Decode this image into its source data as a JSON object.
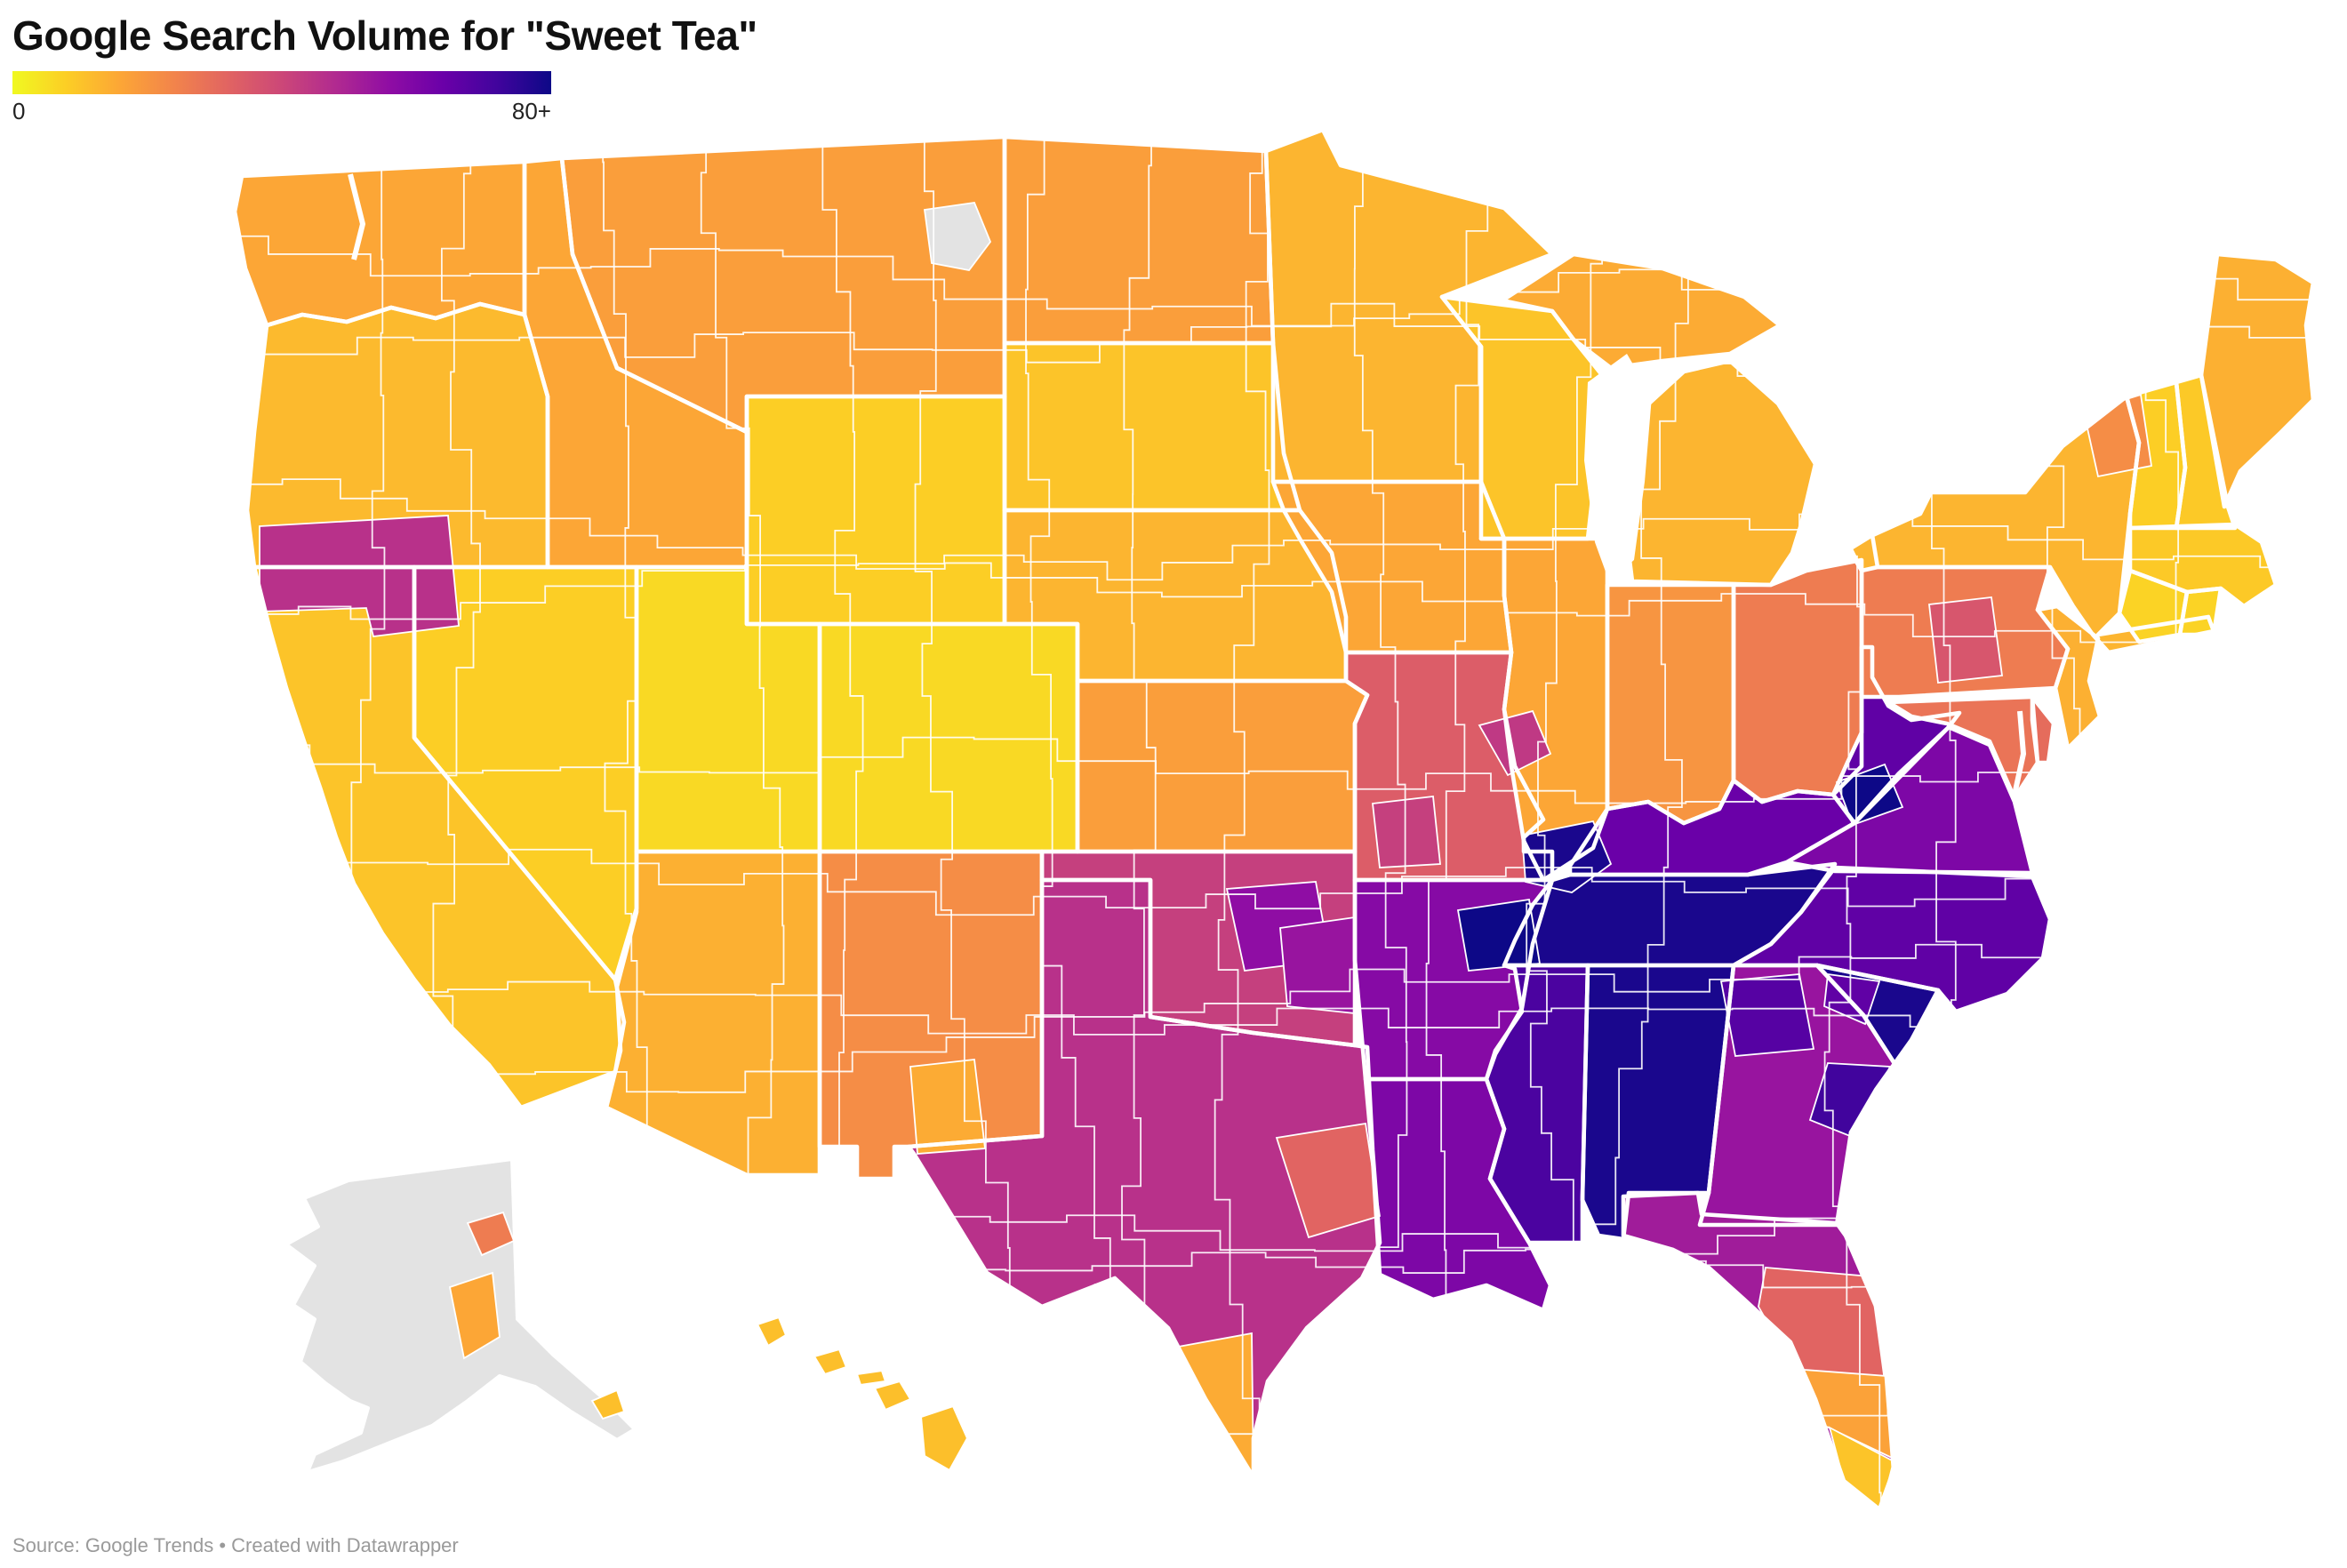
{
  "header": {
    "title": "Google Search Volume for \"Sweet Tea\""
  },
  "legend": {
    "min_label": "0",
    "max_label": "80+",
    "domain_max": 80,
    "no_data_color": "#e3e3e3",
    "plasma_stops": [
      "#0d0887",
      "#41049d",
      "#6a00a8",
      "#8f0da4",
      "#b12a90",
      "#cc4778",
      "#e16462",
      "#f2844b",
      "#fca636",
      "#fcce25",
      "#f0f921"
    ]
  },
  "footer": {
    "source": "Source: Google Trends • Created with Datawrapper"
  },
  "chart_data": {
    "type": "choropleth",
    "title": "Google Search Volume for \"Sweet Tea\"",
    "metric": "search volume index (0 to 80+)",
    "scale_min": 0,
    "scale_max": "80+",
    "legend_position": "top-left",
    "regions": [
      {
        "id": "WA",
        "name": "Washington",
        "value": 16
      },
      {
        "id": "OR",
        "name": "Oregon",
        "value": 12
      },
      {
        "id": "CA",
        "name": "California",
        "value": 10
      },
      {
        "id": "NV",
        "name": "Nevada",
        "value": 8
      },
      {
        "id": "ID",
        "name": "Idaho",
        "value": 16
      },
      {
        "id": "MT",
        "name": "Montana",
        "value": 18
      },
      {
        "id": "WY",
        "name": "Wyoming",
        "value": 8
      },
      {
        "id": "UT",
        "name": "Utah",
        "value": 6
      },
      {
        "id": "CO",
        "name": "Colorado",
        "value": 6
      },
      {
        "id": "AZ",
        "name": "Arizona",
        "value": 14
      },
      {
        "id": "NM",
        "name": "New Mexico",
        "value": 22
      },
      {
        "id": "ND",
        "name": "North Dakota",
        "value": 18
      },
      {
        "id": "SD",
        "name": "South Dakota",
        "value": 10
      },
      {
        "id": "NE",
        "name": "Nebraska",
        "value": 13
      },
      {
        "id": "KS",
        "name": "Kansas",
        "value": 18
      },
      {
        "id": "OK",
        "name": "Oklahoma",
        "value": 42
      },
      {
        "id": "TX",
        "name": "Texas",
        "value": 46
      },
      {
        "id": "MN",
        "name": "Minnesota",
        "value": 13
      },
      {
        "id": "IA",
        "name": "Iowa",
        "value": 16
      },
      {
        "id": "MO",
        "name": "Missouri",
        "value": 34
      },
      {
        "id": "AR",
        "name": "Arkansas",
        "value": 58
      },
      {
        "id": "LA",
        "name": "Louisiana",
        "value": 60
      },
      {
        "id": "WI",
        "name": "Wisconsin",
        "value": 10
      },
      {
        "id": "MI_UP",
        "name": "Michigan (Upper Peninsula)",
        "value": 15
      },
      {
        "id": "MI",
        "name": "Michigan",
        "value": 13
      },
      {
        "id": "IL",
        "name": "Illinois",
        "value": 16
      },
      {
        "id": "IN",
        "name": "Indiana",
        "value": 20
      },
      {
        "id": "OH",
        "name": "Ohio",
        "value": 26
      },
      {
        "id": "KY",
        "name": "Kentucky",
        "value": 64
      },
      {
        "id": "TN",
        "name": "Tennessee",
        "value": 78
      },
      {
        "id": "MS",
        "name": "Mississippi",
        "value": 70
      },
      {
        "id": "AL",
        "name": "Alabama",
        "value": 78
      },
      {
        "id": "GA",
        "name": "Georgia",
        "value": 54
      },
      {
        "id": "FL",
        "name": "Florida (north)",
        "value": 52
      },
      {
        "id": "SC",
        "name": "South Carolina",
        "value": 78
      },
      {
        "id": "NC",
        "name": "North Carolina",
        "value": 66
      },
      {
        "id": "VA",
        "name": "Virginia",
        "value": 60
      },
      {
        "id": "WV",
        "name": "West Virginia",
        "value": 66
      },
      {
        "id": "MD",
        "name": "Maryland",
        "value": 28
      },
      {
        "id": "DE",
        "name": "Delaware",
        "value": 30
      },
      {
        "id": "PA",
        "name": "Pennsylvania",
        "value": 26
      },
      {
        "id": "NJ",
        "name": "New Jersey",
        "value": 14
      },
      {
        "id": "NY",
        "name": "New York",
        "value": 13
      },
      {
        "id": "CT",
        "name": "Connecticut",
        "value": 7
      },
      {
        "id": "RI",
        "name": "Rhode Island",
        "value": 7
      },
      {
        "id": "MA",
        "name": "Massachusetts",
        "value": 9
      },
      {
        "id": "VT",
        "name": "Vermont",
        "value": 8
      },
      {
        "id": "NH",
        "name": "New Hampshire",
        "value": 9
      },
      {
        "id": "ME",
        "name": "Maine",
        "value": 14
      },
      {
        "id": "AK",
        "name": "Alaska (most markets)",
        "value": null
      },
      {
        "id": "HI",
        "name": "Hawaii",
        "value": 11
      },
      {
        "id": "patch_medford",
        "name": "Southern Oregon / Northern California market",
        "value": 46
      },
      {
        "id": "patch_glendive",
        "name": "Eastern Montana market (no data)",
        "value": null
      },
      {
        "id": "patch_paducah",
        "name": "Southern Illinois / Western Kentucky market",
        "value": 78
      },
      {
        "id": "patch_memphis",
        "name": "Memphis-area market (TN/AR/MS)",
        "value": 80
      },
      {
        "id": "patch_stlouis",
        "name": "Eastern Missouri market",
        "value": 44
      },
      {
        "id": "patch_swmo",
        "name": "Southwest Missouri market",
        "value": 42
      },
      {
        "id": "patch_dallas",
        "name": "North Texas market",
        "value": 56
      },
      {
        "id": "patch_houston",
        "name": "Southeast Texas market",
        "value": 32
      },
      {
        "id": "patch_elpaso",
        "name": "Far West Texas market",
        "value": 15
      },
      {
        "id": "patch_stx",
        "name": "South Texas border markets",
        "value": 15
      },
      {
        "id": "patch_seok",
        "name": "Southeast Oklahoma market",
        "value": 54
      },
      {
        "id": "patch_cfl",
        "name": "Central Florida markets",
        "value": 32
      },
      {
        "id": "patch_sfl",
        "name": "South Florida markets",
        "value": 17
      },
      {
        "id": "patch_miami",
        "name": "Miami-area market",
        "value": 10
      },
      {
        "id": "patch_atl",
        "name": "North Georgia market",
        "value": 68
      },
      {
        "id": "patch_sav",
        "name": "Georgia coast market",
        "value": 72
      },
      {
        "id": "patch_harrisburg",
        "name": "Central Pennsylvania market",
        "value": 36
      },
      {
        "id": "patch_burlington",
        "name": "Northern NY / Vermont market",
        "value": 22
      },
      {
        "id": "patch_bluefield",
        "name": "Southern West Virginia market",
        "value": 80
      },
      {
        "id": "patch_gsp",
        "name": "Upstate South Carolina market",
        "value": 66
      },
      {
        "id": "patch_anchorage",
        "name": "Anchorage-area market",
        "value": 16
      },
      {
        "id": "patch_fairbanks",
        "name": "Fairbanks-area market",
        "value": 26
      },
      {
        "id": "patch_juneau",
        "name": "Juneau-area market",
        "value": 11
      }
    ]
  }
}
